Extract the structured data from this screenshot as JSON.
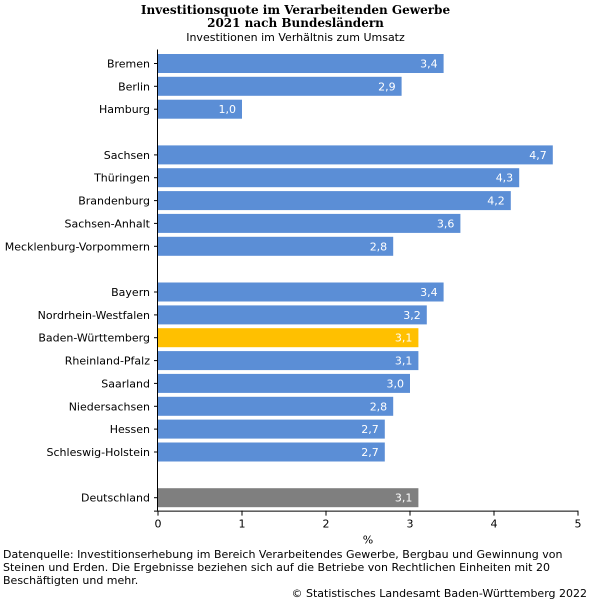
{
  "header": {
    "title_line1": "Investitionsquote im Verarbeitenden Gewerbe",
    "title_line2": "2021 nach Bundesländern",
    "subtitle": "Investitionen im Verhältnis zum Umsatz"
  },
  "chart_data": {
    "type": "bar",
    "orientation": "horizontal",
    "groups": [
      {
        "items": [
          {
            "label": "Bremen",
            "value": 3.4,
            "value_label": "3,4"
          },
          {
            "label": "Berlin",
            "value": 2.9,
            "value_label": "2,9"
          },
          {
            "label": "Hamburg",
            "value": 1.0,
            "value_label": "1,0"
          }
        ]
      },
      {
        "items": [
          {
            "label": "Sachsen",
            "value": 4.7,
            "value_label": "4,7"
          },
          {
            "label": "Thüringen",
            "value": 4.3,
            "value_label": "4,3"
          },
          {
            "label": "Brandenburg",
            "value": 4.2,
            "value_label": "4,2"
          },
          {
            "label": "Sachsen-Anhalt",
            "value": 3.6,
            "value_label": "3,6"
          },
          {
            "label": "Mecklenburg-Vorpommern",
            "value": 2.8,
            "value_label": "2,8"
          }
        ]
      },
      {
        "items": [
          {
            "label": "Bayern",
            "value": 3.4,
            "value_label": "3,4"
          },
          {
            "label": "Nordrhein-Westfalen",
            "value": 3.2,
            "value_label": "3,2"
          },
          {
            "label": "Baden-Württemberg",
            "value": 3.1,
            "value_label": "3,1",
            "highlight": true
          },
          {
            "label": "Rheinland-Pfalz",
            "value": 3.1,
            "value_label": "3,1"
          },
          {
            "label": "Saarland",
            "value": 3.0,
            "value_label": "3,0"
          },
          {
            "label": "Niedersachsen",
            "value": 2.8,
            "value_label": "2,8"
          },
          {
            "label": "Hessen",
            "value": 2.7,
            "value_label": "2,7"
          },
          {
            "label": "Schleswig-Holstein",
            "value": 2.7,
            "value_label": "2,7"
          }
        ]
      },
      {
        "items": [
          {
            "label": "Deutschland",
            "value": 3.1,
            "value_label": "3,1",
            "total": true
          }
        ]
      }
    ],
    "xlim": [
      0,
      5
    ],
    "xticks": [
      0,
      1,
      2,
      3,
      4,
      5
    ],
    "xtick_labels": [
      "0",
      "1",
      "2",
      "3",
      "4",
      "5"
    ],
    "xlabel": "%",
    "grid": false,
    "legend": "none",
    "colors": {
      "default": "#5b8ed6",
      "highlight": "#ffc000",
      "total": "#7f7f7f",
      "value_label": "#ffffff",
      "axis": "#000000"
    }
  },
  "footer": {
    "source": "Datenquelle: Investitionserhebung im Bereich Verarbeitendes Gewerbe, Bergbau und Gewinnung von Steinen und Erden. Die Ergebnisse beziehen sich auf die Betriebe von Rechtlichen Einheiten mit 20 Beschäftigten und mehr.",
    "copyright": "© Statistisches Landesamt Baden-Württemberg 2022"
  }
}
